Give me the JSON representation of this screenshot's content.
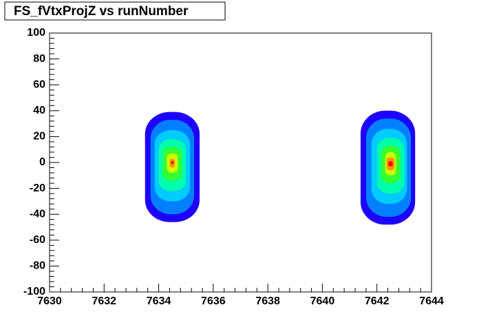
{
  "chart_data": {
    "type": "contour",
    "title": "FS_fVtxProjZ  vs runNumber",
    "xlim": [
      7630,
      7644
    ],
    "xticks": [
      7630,
      7632,
      7634,
      7636,
      7638,
      7640,
      7642,
      7644
    ],
    "ylim": [
      -100,
      100
    ],
    "yticks": [
      -100,
      -80,
      -60,
      -40,
      -20,
      0,
      20,
      40,
      60,
      80,
      100
    ],
    "level_colors": [
      "#1e00ff",
      "#0080ff",
      "#00ccff",
      "#00ffaa",
      "#33ff33",
      "#ccff00",
      "#ff9900",
      "#ff0000"
    ],
    "blobs": [
      {
        "levels": [
          {
            "xmin": 7633.5,
            "xmax": 7635.5,
            "ymin": -46,
            "ymax": 39
          },
          {
            "xmin": 7633.7,
            "xmax": 7635.3,
            "ymin": -40,
            "ymax": 33
          },
          {
            "xmin": 7633.85,
            "xmax": 7635.15,
            "ymin": -30,
            "ymax": 25
          },
          {
            "xmin": 7634.0,
            "xmax": 7635.0,
            "ymin": -22,
            "ymax": 18
          },
          {
            "xmin": 7634.15,
            "xmax": 7634.85,
            "ymin": -14,
            "ymax": 12
          },
          {
            "xmin": 7634.3,
            "xmax": 7634.7,
            "ymin": -8,
            "ymax": 7
          },
          {
            "xmin": 7634.4,
            "xmax": 7634.6,
            "ymin": -4,
            "ymax": 3
          },
          {
            "xmin": 7634.45,
            "xmax": 7634.55,
            "ymin": -1,
            "ymax": 1
          }
        ]
      },
      {
        "levels": [
          {
            "xmin": 7641.4,
            "xmax": 7643.4,
            "ymin": -48,
            "ymax": 40
          },
          {
            "xmin": 7641.6,
            "xmax": 7643.25,
            "ymin": -42,
            "ymax": 34
          },
          {
            "xmin": 7641.8,
            "xmax": 7643.1,
            "ymin": -32,
            "ymax": 26
          },
          {
            "xmin": 7642.0,
            "xmax": 7643.0,
            "ymin": -24,
            "ymax": 19
          },
          {
            "xmin": 7642.15,
            "xmax": 7642.85,
            "ymin": -16,
            "ymax": 13
          },
          {
            "xmin": 7642.3,
            "xmax": 7642.7,
            "ymin": -10,
            "ymax": 8
          },
          {
            "xmin": 7642.35,
            "xmax": 7642.65,
            "ymin": -6,
            "ymax": 4
          },
          {
            "xmin": 7642.42,
            "xmax": 7642.58,
            "ymin": -3,
            "ymax": 1
          }
        ]
      }
    ]
  }
}
